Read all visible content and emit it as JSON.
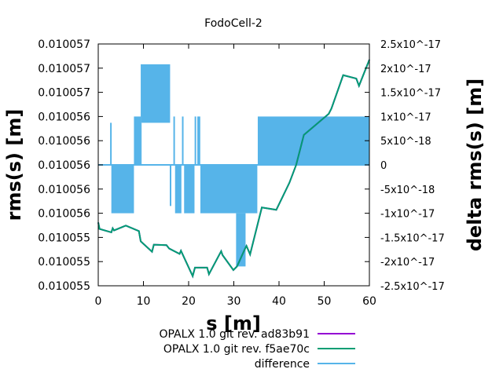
{
  "chart_data": {
    "type": "line",
    "title": "FodoCell-2",
    "xlabel": "s [m]",
    "ylabel": "rms(s) [m]",
    "y2label": "delta rms(s) [m]",
    "xlim": [
      0,
      60
    ],
    "ylim": [
      0.010055,
      0.010057
    ],
    "y2lim": [
      -2.5e-17,
      2.5e-17
    ],
    "grid": false,
    "legend_placement": "bottom-center",
    "x_ticks": [
      0,
      10,
      20,
      30,
      40,
      50,
      60
    ],
    "x_tick_labels": [
      "0",
      "10",
      "20",
      "30",
      "40",
      "50",
      "60"
    ],
    "y_tick_labels": [
      "0.010057",
      "0.010057",
      "0.010057",
      "0.010056",
      "0.010056",
      "0.010056",
      "0.010056",
      "0.010056",
      "0.010055",
      "0.010055",
      "0.010055"
    ],
    "y2_tick_labels": [
      "2.5x10^-17",
      "2x10^-17",
      "1.5x10^-17",
      "1x10^-17",
      "5x10^-18",
      "0",
      "-5x10^-18",
      "-1x10^-17",
      "-1.5x10^-17",
      "-2x10^-17",
      "-2.5x10^-17"
    ],
    "series": [
      {
        "name": "OPALX 1.0 git rev. ad83b91",
        "color": "#9400d3",
        "axis": "y",
        "x": [
          0,
          0.29,
          2.9,
          3.2,
          3.5,
          6.1,
          9.0,
          9.4,
          11.9,
          12.3,
          15.1,
          15.7,
          18.0,
          18.3,
          20.9,
          21.4,
          24.1,
          24.5,
          27.2,
          27.5,
          29.9,
          30.7,
          32.5,
          32.8,
          33.6,
          36.2,
          39.4,
          42.3,
          43.8,
          45.5,
          51.0,
          51.6,
          54.2,
          57.1,
          57.7,
          60
        ],
        "y": [
          0.010055524,
          0.01005547,
          0.010055442,
          0.010055476,
          0.010055458,
          0.010055498,
          0.010055452,
          0.010055368,
          0.010055282,
          0.01005534,
          0.010055336,
          0.010055308,
          0.010055264,
          0.01005529,
          0.01005508,
          0.01005515,
          0.01005515,
          0.010055096,
          0.010055286,
          0.010055254,
          0.01005513,
          0.01005516,
          0.010055308,
          0.01005533,
          0.01005526,
          0.010055648,
          0.010055628,
          0.010055852,
          0.010056,
          0.010056248,
          0.010056422,
          0.010056466,
          0.010056742,
          0.010056714,
          0.010056654,
          0.01005687
        ]
      },
      {
        "name": "OPALX 1.0 git rev. f5ae70c",
        "color": "#009e73",
        "axis": "y",
        "same_as": "OPALX 1.0 git rev. ad83b91"
      },
      {
        "name": "difference",
        "color": "#56b4e9",
        "axis": "y2",
        "baseline": 0,
        "bands": [
          {
            "s_start": 2.9,
            "s_end": 7.9,
            "low": -1e-17,
            "high": 0
          },
          {
            "s_start": 7.9,
            "s_end": 9.4,
            "low": 0,
            "high": 1e-17
          },
          {
            "s_start": 9.4,
            "s_end": 15.9,
            "low": 8.7e-18,
            "high": 2.08e-17
          },
          {
            "s_start": 9.4,
            "s_end": 9.6,
            "low": 0,
            "high": 8.7e-18
          },
          {
            "s_start": 17.0,
            "s_end": 18.4,
            "low": -1e-17,
            "high": 0
          },
          {
            "s_start": 19.0,
            "s_end": 21.3,
            "low": -1e-17,
            "high": 0
          },
          {
            "s_start": 22.6,
            "s_end": 35.2,
            "low": -1e-17,
            "high": 0
          },
          {
            "s_start": 30.5,
            "s_end": 32.6,
            "low": -2.1e-17,
            "high": -1e-17
          },
          {
            "s_start": 35.3,
            "s_end": 60,
            "low": 0,
            "high": 1e-17
          }
        ],
        "spikes": [
          {
            "s": 2.8,
            "value": 8.7e-18
          },
          {
            "s": 16.0,
            "value": -8.5e-18
          },
          {
            "s": 16.8,
            "value": 1e-17
          },
          {
            "s": 18.7,
            "value": 1e-17
          },
          {
            "s": 21.5,
            "value": 1e-17
          },
          {
            "s": 22.1,
            "value": 1e-17
          },
          {
            "s": 22.4,
            "value": 1e-17
          }
        ]
      }
    ]
  }
}
